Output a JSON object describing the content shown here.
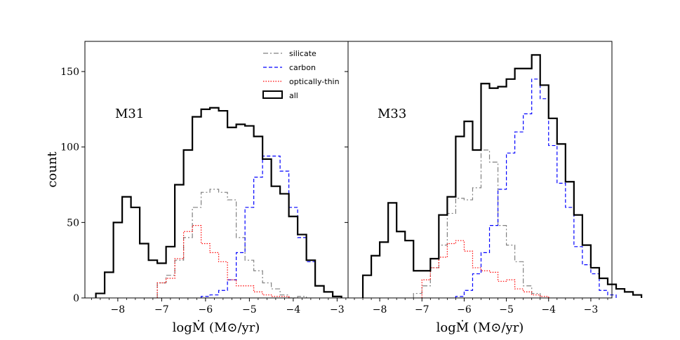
{
  "figure": {
    "ylabel": "count",
    "xlabel": "logṀ (M⊙/yr)"
  },
  "legend": {
    "entries": [
      {
        "label": "silicate",
        "color": "#808080",
        "style": "dashdot"
      },
      {
        "label": "carbon",
        "color": "#0000ff",
        "style": "dashed"
      },
      {
        "label": "optically-thin",
        "color": "#ff0000",
        "style": "dotted"
      },
      {
        "label": "all",
        "color": "#000000",
        "style": "solid"
      }
    ]
  },
  "chart_data": [
    {
      "type": "histogram",
      "title": "M31",
      "xlabel": "logṀ (M⊙/yr)",
      "ylabel": "count",
      "xlim": [
        -8.75,
        -2.75
      ],
      "ylim": [
        0,
        170
      ],
      "xticks": [
        -8,
        -7,
        -6,
        -5,
        -4,
        -3
      ],
      "xtick_labels": [
        "−8",
        "−7",
        "−6",
        "−5",
        "−4",
        "−3"
      ],
      "yticks": [
        0,
        50,
        100,
        150
      ],
      "ytick_labels": [
        "0",
        "50",
        "100",
        "150"
      ],
      "bin_width": 0.2,
      "series": [
        {
          "name": "all",
          "color": "#000000",
          "start": -8.5,
          "values": [
            3,
            17,
            50,
            67,
            60,
            36,
            25,
            23,
            34,
            75,
            98,
            120,
            125,
            126,
            124,
            113,
            115,
            114,
            107,
            92,
            74,
            69,
            54,
            42,
            25,
            8,
            4,
            1
          ]
        },
        {
          "name": "silicate",
          "color": "#808080",
          "start": -7.1,
          "values": [
            10,
            15,
            25,
            40,
            60,
            70,
            72,
            70,
            65,
            40,
            25,
            18,
            10,
            6,
            2,
            0,
            1
          ]
        },
        {
          "name": "carbon",
          "color": "#0000ff",
          "start": -6.1,
          "values": [
            1,
            2,
            5,
            12,
            30,
            60,
            80,
            94,
            94,
            84,
            60,
            40,
            24,
            8,
            4,
            1
          ]
        },
        {
          "name": "optically-thin",
          "color": "#ff0000",
          "start": -7.1,
          "values": [
            10,
            13,
            26,
            44,
            48,
            36,
            30,
            24,
            12,
            8,
            8,
            4,
            2,
            1,
            1
          ]
        }
      ]
    },
    {
      "type": "histogram",
      "title": "M33",
      "xlabel": "logṀ (M⊙/yr)",
      "ylabel": "count",
      "xlim": [
        -8.75,
        -2.5
      ],
      "ylim": [
        0,
        170
      ],
      "xticks": [
        -8,
        -7,
        -6,
        -5,
        -4,
        -3
      ],
      "xtick_labels": [
        "−8",
        "−7",
        "−6",
        "−5",
        "−4",
        "−3"
      ],
      "yticks": [
        0,
        50,
        100,
        150
      ],
      "ytick_labels": [
        "0",
        "50",
        "100",
        "150"
      ],
      "bin_width": 0.2,
      "series": [
        {
          "name": "all",
          "color": "#000000",
          "start": -8.4,
          "values": [
            15,
            28,
            37,
            63,
            44,
            38,
            18,
            18,
            26,
            55,
            67,
            107,
            117,
            98,
            142,
            139,
            140,
            145,
            152,
            152,
            161,
            141,
            119,
            102,
            77,
            55,
            35,
            20,
            13,
            9,
            6,
            4,
            2
          ]
        },
        {
          "name": "silicate",
          "color": "#808080",
          "start": -7.2,
          "values": [
            3,
            8,
            20,
            35,
            56,
            66,
            65,
            73,
            98,
            90,
            48,
            35,
            24,
            8,
            3
          ]
        },
        {
          "name": "carbon",
          "color": "#0000ff",
          "start": -6.2,
          "values": [
            1,
            5,
            16,
            30,
            48,
            72,
            96,
            110,
            122,
            145,
            132,
            101,
            76,
            60,
            34,
            22,
            16,
            5,
            2
          ]
        },
        {
          "name": "optically-thin",
          "color": "#ff0000",
          "start": -7.0,
          "values": [
            12,
            20,
            27,
            36,
            38,
            31,
            20,
            18,
            17,
            11,
            12,
            6,
            4,
            2,
            1
          ]
        }
      ]
    }
  ]
}
